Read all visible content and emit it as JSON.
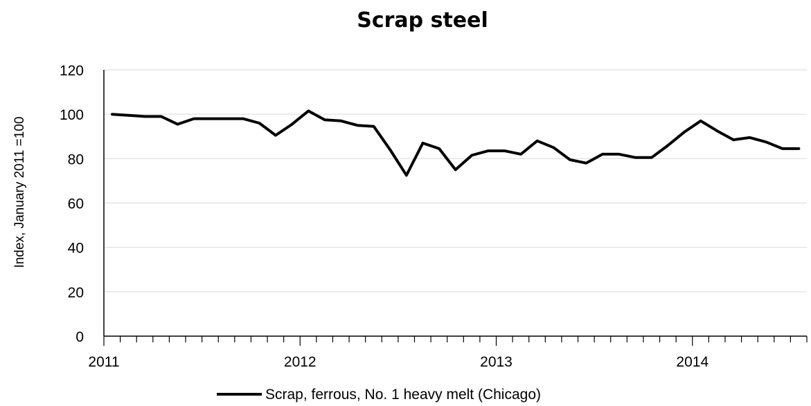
{
  "chart_data": {
    "type": "line",
    "title": "Scrap steel",
    "xlabel": "",
    "ylabel": "Index, January 2011 =100",
    "ylim": [
      0,
      120
    ],
    "yticks": [
      0,
      20,
      40,
      60,
      80,
      100,
      120
    ],
    "xtick_labels": [
      "2011",
      "2012",
      "2013",
      "2014"
    ],
    "grid": true,
    "legend_position": "bottom",
    "x_start": "2011-01",
    "x_end": "2014-07",
    "series": [
      {
        "name": "Scrap, ferrous, No. 1 heavy melt (Chicago)",
        "color": "#000000",
        "x": [
          "2011-01",
          "2011-02",
          "2011-03",
          "2011-04",
          "2011-05",
          "2011-06",
          "2011-07",
          "2011-08",
          "2011-09",
          "2011-10",
          "2011-11",
          "2011-12",
          "2012-01",
          "2012-02",
          "2012-03",
          "2012-04",
          "2012-05",
          "2012-06",
          "2012-07",
          "2012-08",
          "2012-09",
          "2012-10",
          "2012-11",
          "2012-12",
          "2013-01",
          "2013-02",
          "2013-03",
          "2013-04",
          "2013-05",
          "2013-06",
          "2013-07",
          "2013-08",
          "2013-09",
          "2013-10",
          "2013-11",
          "2013-12",
          "2014-01",
          "2014-02",
          "2014-03",
          "2014-04",
          "2014-05",
          "2014-06",
          "2014-07"
        ],
        "values": [
          100,
          99.5,
          99,
          99,
          95.5,
          98,
          98,
          98,
          98,
          96,
          90.5,
          95.5,
          101.5,
          97.5,
          97,
          95,
          94.5,
          84,
          72.5,
          87,
          84.5,
          75,
          81.5,
          83.5,
          83.5,
          82,
          88,
          85,
          79.5,
          78,
          82,
          82,
          80.5,
          80.5,
          86,
          92,
          97,
          92.5,
          88.5,
          89.5,
          87.5,
          84.5,
          84.5
        ]
      }
    ]
  }
}
